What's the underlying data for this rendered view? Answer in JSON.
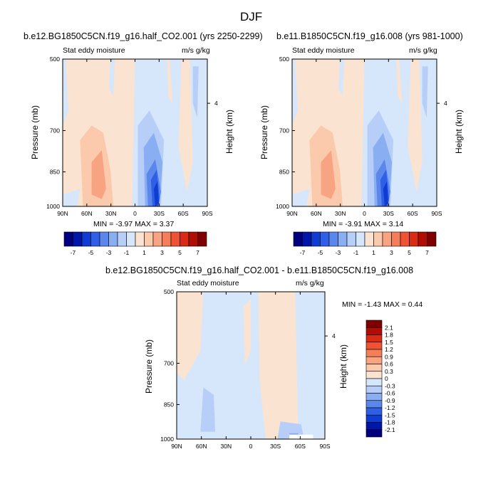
{
  "page": {
    "title": "DJF"
  },
  "colors": {
    "negative": [
      "#00007f",
      "#0016a8",
      "#0f3cd1",
      "#2f5fe6",
      "#5b87ec",
      "#8aaef2",
      "#b7cff8",
      "#d6e6fb"
    ],
    "positive": [
      "#fbe3d2",
      "#fbc9ab",
      "#f8a381",
      "#f47e5a",
      "#ee5334",
      "#d82c14",
      "#b10d05",
      "#7f0000"
    ]
  },
  "chart_data": [
    {
      "type": "heatmap",
      "title": "b.e12.BG1850C5CN.f19_g16.half_CO2.001 (yrs 2250-2299)",
      "left_label": "Stat eddy moisture",
      "right_label": "m/s g/kg",
      "xlabel": "",
      "ylabel": "Pressure (mb)",
      "ylabel_right": "Height (km)",
      "x_ticks": [
        "90N",
        "60N",
        "30N",
        "0",
        "30S",
        "60S",
        "90S"
      ],
      "y_ticks": [
        "500",
        "700",
        "850",
        "1000"
      ],
      "right_ticks": [
        "4"
      ],
      "stats_text": "MIN =  -3.97   MAX =   3.37",
      "min": -3.97,
      "max": 3.37,
      "colorbar_labels": [
        "-7",
        "-5",
        "-3",
        "-1",
        "1",
        "3",
        "5",
        "7"
      ]
    },
    {
      "type": "heatmap",
      "title": "b.e11.B1850C5CN.f19_g16.008 (yrs 981-1000)",
      "left_label": "Stat eddy moisture",
      "right_label": "m/s g/kg",
      "xlabel": "",
      "ylabel": "Pressure (mb)",
      "ylabel_right": "Height (km)",
      "x_ticks": [
        "90N",
        "60N",
        "30N",
        "0",
        "30S",
        "60S",
        "90S"
      ],
      "y_ticks": [
        "500",
        "700",
        "850",
        "1000"
      ],
      "right_ticks": [
        "4"
      ],
      "stats_text": "MIN =  -3.91   MAX =   3.14",
      "min": -3.91,
      "max": 3.14,
      "colorbar_labels": [
        "-7",
        "-5",
        "-3",
        "-1",
        "1",
        "3",
        "5",
        "7"
      ]
    },
    {
      "type": "heatmap",
      "title": "b.e12.BG1850C5CN.f19_g16.half_CO2.001 - b.e11.B1850C5CN.f19_g16.008",
      "left_label": "Stat eddy moisture",
      "right_label": "m/s g/kg",
      "xlabel": "",
      "ylabel": "Pressure (mb)",
      "ylabel_right": "Height (km)",
      "x_ticks": [
        "90N",
        "60N",
        "30N",
        "0",
        "30S",
        "60S",
        "90S"
      ],
      "y_ticks": [
        "500",
        "700",
        "850",
        "1000"
      ],
      "right_ticks": [
        "4"
      ],
      "stats_text": "MIN =  -1.43   MAX =   0.44",
      "min": -1.43,
      "max": 0.44,
      "colorbar_labels": [
        "2.1",
        "1.8",
        "1.5",
        "1.2",
        "0.9",
        "0.6",
        "0.3",
        "0",
        "-0.3",
        "-0.6",
        "-0.9",
        "-1.2",
        "-1.5",
        "-1.8",
        "-2.1"
      ]
    }
  ]
}
